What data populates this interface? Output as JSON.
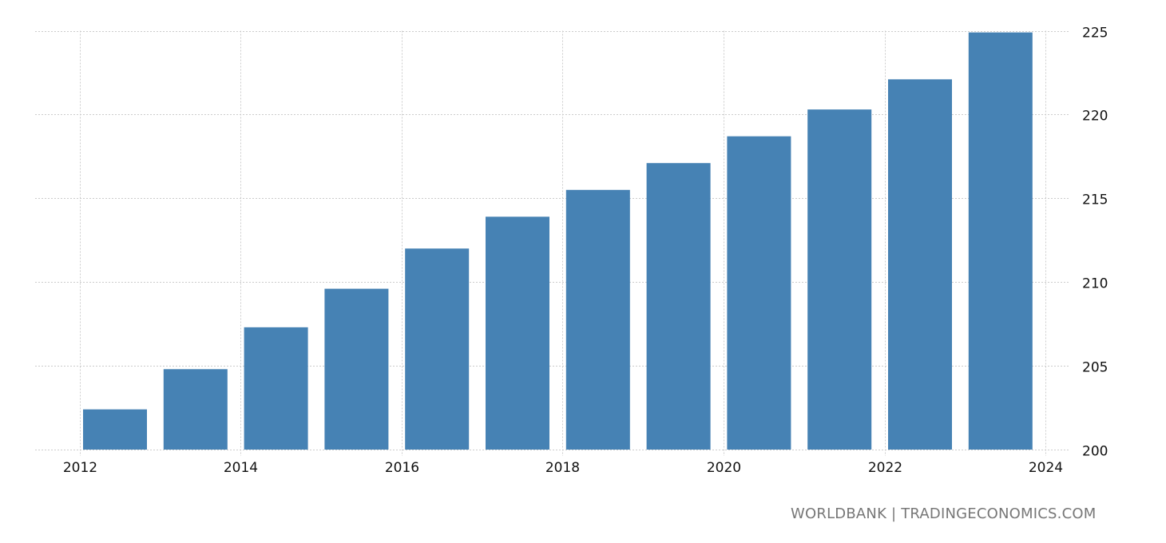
{
  "chart_data": {
    "type": "bar",
    "categories": [
      "2012",
      "2013",
      "2014",
      "2015",
      "2016",
      "2017",
      "2018",
      "2019",
      "2020",
      "2021",
      "2022",
      "2023"
    ],
    "values": [
      202.4,
      204.8,
      207.3,
      209.6,
      212.0,
      213.9,
      215.5,
      217.1,
      218.7,
      220.3,
      222.1,
      224.9
    ],
    "ylim": [
      200,
      225
    ],
    "y_ticks": [
      "200",
      "205",
      "210",
      "215",
      "220",
      "225"
    ],
    "x_ticks": [
      "2012",
      "2014",
      "2016",
      "2018",
      "2020",
      "2022",
      "2024"
    ],
    "xlim": [
      2012,
      2024
    ],
    "y_axis_position": "right",
    "grid": true,
    "bar_color": "#4682b4",
    "title": "",
    "xlabel": "",
    "ylabel": ""
  },
  "source": "WORLDBANK | TRADINGECONOMICS.COM"
}
